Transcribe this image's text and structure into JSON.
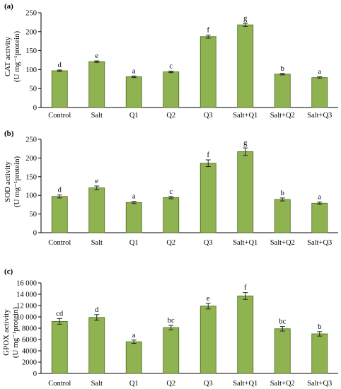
{
  "colors": {
    "bar_fill": "#8fb350",
    "bar_stroke": "#4a6a1e",
    "axis": "#000000",
    "error_bar": "#222222"
  },
  "chart_data": [
    {
      "type": "bar",
      "panel_label": "(a)",
      "ylabel_line1": "CAT activity",
      "ylabel_line2": "(U mg⁻¹protein)",
      "categories": [
        "Control",
        "Salt",
        "Q1",
        "Q2",
        "Q3",
        "Salt+Q1",
        "Salt+Q2",
        "Salt+Q3"
      ],
      "values": [
        97,
        121,
        81,
        94,
        187,
        218,
        88,
        79
      ],
      "errors": [
        2,
        2,
        2,
        2,
        4,
        4,
        2,
        2
      ],
      "letters": [
        "d",
        "e",
        "a",
        "c",
        "f",
        "g",
        "b",
        "a"
      ],
      "ylim": [
        0,
        250
      ],
      "yticks": [
        0,
        50,
        100,
        150,
        200,
        250
      ],
      "ytick_labels": [
        "0",
        "50",
        "100",
        "150",
        "200",
        "250"
      ]
    },
    {
      "type": "bar",
      "panel_label": "(b)",
      "ylabel_line1": "SOD activity",
      "ylabel_line2": "(U mg⁻¹protein)",
      "categories": [
        "Control",
        "Salt",
        "Q1",
        "Q2",
        "Q3",
        "Salt+Q1",
        "Salt+Q2",
        "Salt+Q3"
      ],
      "values": [
        97,
        120,
        81,
        94,
        186,
        217,
        89,
        79
      ],
      "errors": [
        4,
        5,
        3,
        3,
        9,
        10,
        4,
        3
      ],
      "letters": [
        "d",
        "e",
        "a",
        "c",
        "f",
        "g",
        "b",
        "a"
      ],
      "ylim": [
        0,
        250
      ],
      "yticks": [
        0,
        50,
        100,
        150,
        200,
        250
      ],
      "ytick_labels": [
        "0",
        "50",
        "100",
        "150",
        "200",
        "250"
      ]
    },
    {
      "type": "bar",
      "panel_label": "(c)",
      "ylabel_line1": "GPOX activity",
      "ylabel_line2": "(U mg⁻¹protein)",
      "categories": [
        "Control",
        "Salt",
        "Q1",
        "Q2",
        "Q3",
        "Salt+Q1",
        "Salt+Q2",
        "Salt+Q3"
      ],
      "values": [
        9200,
        9900,
        5600,
        8100,
        11900,
        13700,
        7900,
        7000
      ],
      "errors": [
        500,
        500,
        300,
        400,
        500,
        600,
        400,
        400
      ],
      "letters": [
        "cd",
        "d",
        "a",
        "bc",
        "e",
        "f",
        "bc",
        "b"
      ],
      "ylim": [
        0,
        16000
      ],
      "yticks": [
        0,
        2000,
        4000,
        6000,
        8000,
        10000,
        12000,
        14000,
        16000
      ],
      "ytick_labels": [
        "0",
        "2000",
        "4000",
        "6000",
        "8000",
        "10 000",
        "12 000",
        "14 000",
        "16 000"
      ]
    }
  ]
}
